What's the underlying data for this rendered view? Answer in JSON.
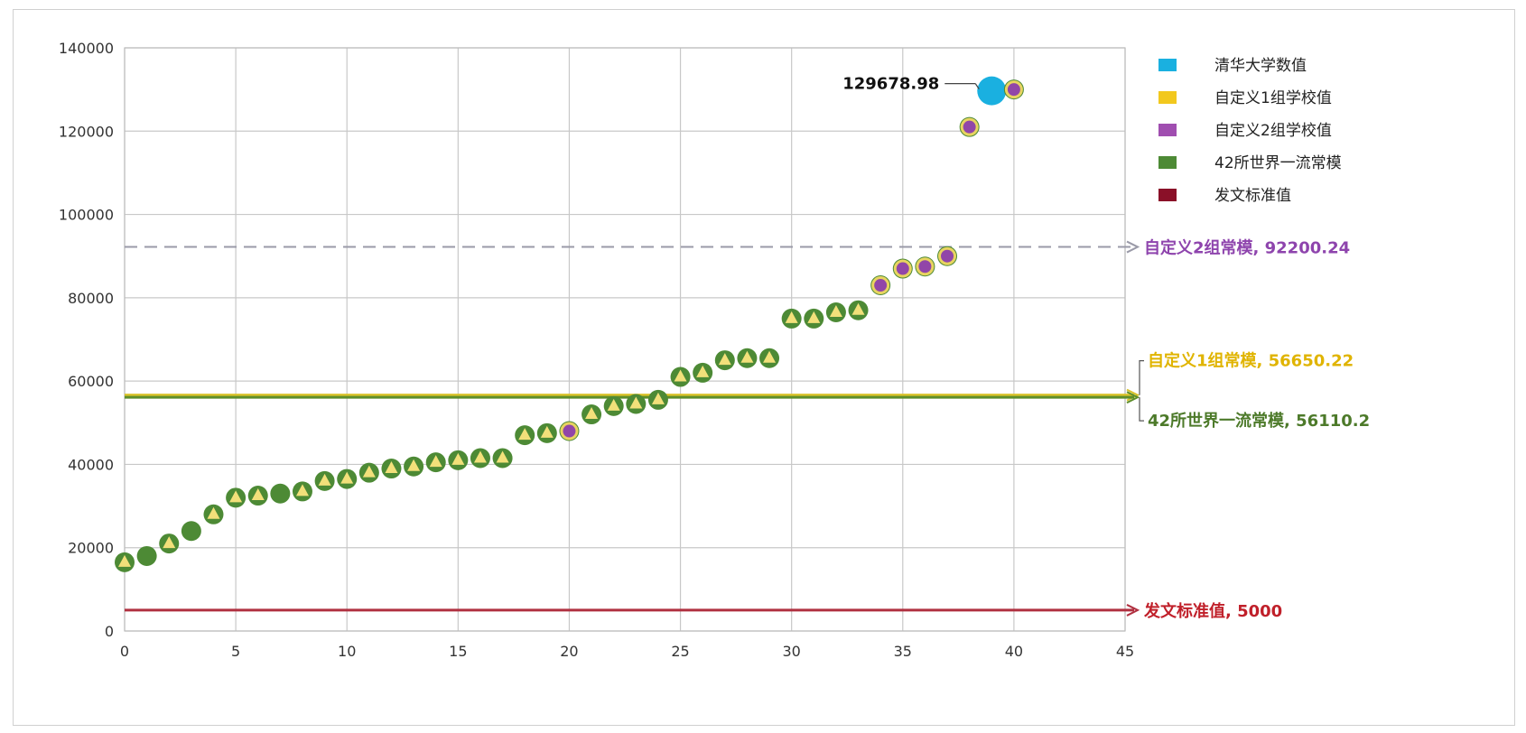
{
  "chart_data": {
    "type": "scatter",
    "title": "",
    "xlabel": "",
    "ylabel": "",
    "xlim": [
      0,
      45
    ],
    "ylim": [
      0,
      140000
    ],
    "x_ticks": [
      0,
      5,
      10,
      15,
      20,
      25,
      30,
      35,
      40,
      45
    ],
    "y_ticks": [
      0,
      20000,
      40000,
      60000,
      80000,
      100000,
      120000,
      140000
    ],
    "grid": true,
    "legend_position": "right",
    "legend": [
      {
        "label": "清华大学数值",
        "color": "#1ab0e0"
      },
      {
        "label": "自定义1组学校值",
        "color": "#f2c81e"
      },
      {
        "label": "自定义2组学校值",
        "color": "#a04eb0"
      },
      {
        "label": "42所世界一流常模",
        "color": "#4d8a35"
      },
      {
        "label": "发文标准值",
        "color": "#8a1028"
      }
    ],
    "points": [
      {
        "x": 0,
        "y": 16500,
        "group": "custom1"
      },
      {
        "x": 1,
        "y": 18000,
        "group": "world42"
      },
      {
        "x": 2,
        "y": 21000,
        "group": "custom1"
      },
      {
        "x": 3,
        "y": 24000,
        "group": "world42"
      },
      {
        "x": 4,
        "y": 28000,
        "group": "custom1"
      },
      {
        "x": 5,
        "y": 32000,
        "group": "custom1"
      },
      {
        "x": 6,
        "y": 32500,
        "group": "custom1"
      },
      {
        "x": 7,
        "y": 33000,
        "group": "world42"
      },
      {
        "x": 8,
        "y": 33500,
        "group": "custom1"
      },
      {
        "x": 9,
        "y": 36000,
        "group": "custom1"
      },
      {
        "x": 10,
        "y": 36500,
        "group": "custom1"
      },
      {
        "x": 11,
        "y": 38000,
        "group": "custom1"
      },
      {
        "x": 12,
        "y": 39000,
        "group": "custom1"
      },
      {
        "x": 13,
        "y": 39500,
        "group": "custom1"
      },
      {
        "x": 14,
        "y": 40500,
        "group": "custom1"
      },
      {
        "x": 15,
        "y": 41000,
        "group": "custom1"
      },
      {
        "x": 16,
        "y": 41500,
        "group": "custom1"
      },
      {
        "x": 17,
        "y": 41500,
        "group": "custom1"
      },
      {
        "x": 18,
        "y": 47000,
        "group": "custom1"
      },
      {
        "x": 19,
        "y": 47500,
        "group": "custom1"
      },
      {
        "x": 20,
        "y": 48000,
        "group": "custom2"
      },
      {
        "x": 21,
        "y": 52000,
        "group": "custom1"
      },
      {
        "x": 22,
        "y": 54000,
        "group": "custom1"
      },
      {
        "x": 23,
        "y": 54500,
        "group": "custom1"
      },
      {
        "x": 24,
        "y": 55500,
        "group": "custom1"
      },
      {
        "x": 25,
        "y": 61000,
        "group": "custom1"
      },
      {
        "x": 26,
        "y": 62000,
        "group": "custom1"
      },
      {
        "x": 27,
        "y": 65000,
        "group": "custom1"
      },
      {
        "x": 28,
        "y": 65500,
        "group": "custom1"
      },
      {
        "x": 29,
        "y": 65500,
        "group": "custom1"
      },
      {
        "x": 30,
        "y": 75000,
        "group": "custom1"
      },
      {
        "x": 31,
        "y": 75000,
        "group": "custom1"
      },
      {
        "x": 32,
        "y": 76500,
        "group": "custom1"
      },
      {
        "x": 33,
        "y": 77000,
        "group": "custom1"
      },
      {
        "x": 34,
        "y": 83000,
        "group": "custom2"
      },
      {
        "x": 35,
        "y": 87000,
        "group": "custom2"
      },
      {
        "x": 36,
        "y": 87500,
        "group": "custom2"
      },
      {
        "x": 37,
        "y": 90000,
        "group": "custom2"
      },
      {
        "x": 38,
        "y": 121000,
        "group": "custom2"
      },
      {
        "x": 39,
        "y": 129678.98,
        "group": "tsinghua"
      },
      {
        "x": 40,
        "y": 130000,
        "group": "custom2"
      }
    ],
    "point_label": {
      "x": 39,
      "y": 129678.98,
      "text": "129678.98"
    },
    "reference_lines": [
      {
        "label": "自定义2组常模, 92200.24",
        "value": 92200.24,
        "style": "dashed",
        "color": "#9a9aa8",
        "label_color": "#8e44ad"
      },
      {
        "label": "自定义1组常模, 56650.22",
        "value": 56650.22,
        "style": "solid",
        "color": "#d9c22a",
        "label_color": "#e0b400"
      },
      {
        "label": "42所世界一流常模, 56110.2",
        "value": 56110.2,
        "style": "solid",
        "color": "#5d8e2a",
        "label_color": "#4d7a2a"
      },
      {
        "label": "发文标准值, 5000",
        "value": 5000,
        "style": "solid",
        "color": "#b03040",
        "label_color": "#c0202a"
      }
    ]
  }
}
